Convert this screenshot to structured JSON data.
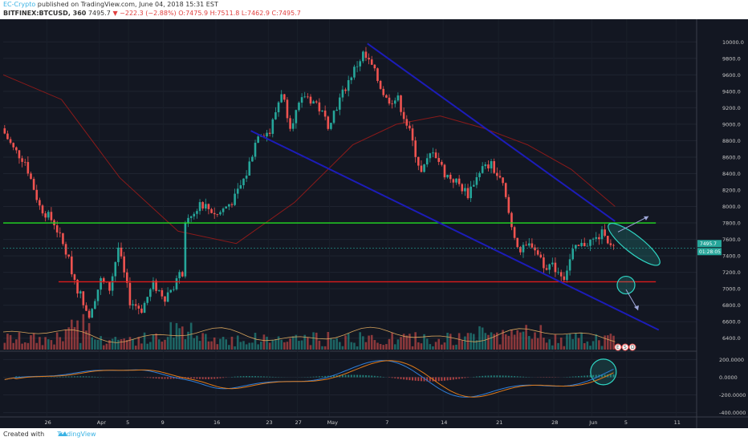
{
  "header": {
    "author": "EC-Crypto",
    "published": "published on TradingView.com, June 04, 2018 15:31 EST",
    "symbol": "BITFINEX:BTCUSD, 360",
    "last": "7495.7",
    "change": "−222.3 (−2.88%)",
    "ohlc": "O:7475.9 H:7511.8 L:7462.9 C:7495.7"
  },
  "footer": {
    "created_with": "Created with",
    "brand": "TradingView"
  },
  "colors": {
    "background": "#131722",
    "up": "#26a69a",
    "down": "#ef5350",
    "ma": "#8b1a1a",
    "channel": "#1c1cb8",
    "resistance": "#22dd22",
    "support": "#dd1b1b",
    "macd": "#2e7dd7",
    "signal": "#e07b1a",
    "annotation": "#2fd6c4"
  },
  "chart_data": [
    {
      "type": "candlestick",
      "price_range": [
        6300,
        10100
      ],
      "y_ticks": [
        "10000.0",
        "9800.0",
        "9600.0",
        "9400.0",
        "9200.0",
        "9000.0",
        "8800.0",
        "8600.0",
        "8400.0",
        "8200.0",
        "8000.0",
        "7800.0",
        "7600.0",
        "7400.0",
        "7200.0",
        "7000.0",
        "6800.0",
        "6600.0",
        "6400.0"
      ],
      "x_ticks": [
        "26",
        "Apr",
        "5",
        "9",
        "16",
        "23",
        "27",
        "May",
        "7",
        "14",
        "21",
        "28",
        "Jun",
        "5",
        "11",
        "18"
      ],
      "last_price_label": "7495.7",
      "countdown_label": "01:28:05",
      "price_path": [
        {
          "t": 0,
          "p": 8950
        },
        {
          "t": 4,
          "p": 8700
        },
        {
          "t": 8,
          "p": 8550
        },
        {
          "t": 13,
          "p": 8000
        },
        {
          "t": 18,
          "p": 7800
        },
        {
          "t": 22,
          "p": 7450
        },
        {
          "t": 26,
          "p": 7000
        },
        {
          "t": 30,
          "p": 6700
        },
        {
          "t": 34,
          "p": 7100
        },
        {
          "t": 37,
          "p": 7000
        },
        {
          "t": 40,
          "p": 7500
        },
        {
          "t": 44,
          "p": 6850
        },
        {
          "t": 48,
          "p": 6750
        },
        {
          "t": 52,
          "p": 7050
        },
        {
          "t": 56,
          "p": 6900
        },
        {
          "t": 60,
          "p": 7100
        },
        {
          "t": 62,
          "p": 7200
        },
        {
          "t": 63,
          "p": 7750
        },
        {
          "t": 68,
          "p": 8050
        },
        {
          "t": 74,
          "p": 7900
        },
        {
          "t": 80,
          "p": 8100
        },
        {
          "t": 84,
          "p": 8400
        },
        {
          "t": 88,
          "p": 8900
        },
        {
          "t": 92,
          "p": 8900
        },
        {
          "t": 96,
          "p": 9400
        },
        {
          "t": 99,
          "p": 9000
        },
        {
          "t": 104,
          "p": 9350
        },
        {
          "t": 108,
          "p": 9250
        },
        {
          "t": 112,
          "p": 9000
        },
        {
          "t": 116,
          "p": 9300
        },
        {
          "t": 120,
          "p": 9600
        },
        {
          "t": 124,
          "p": 9850
        },
        {
          "t": 127,
          "p": 9700
        },
        {
          "t": 132,
          "p": 9300
        },
        {
          "t": 136,
          "p": 9300
        },
        {
          "t": 140,
          "p": 8900
        },
        {
          "t": 144,
          "p": 8400
        },
        {
          "t": 148,
          "p": 8700
        },
        {
          "t": 152,
          "p": 8400
        },
        {
          "t": 156,
          "p": 8300
        },
        {
          "t": 160,
          "p": 8150
        },
        {
          "t": 164,
          "p": 8450
        },
        {
          "t": 168,
          "p": 8500
        },
        {
          "t": 172,
          "p": 8250
        },
        {
          "t": 175,
          "p": 7750
        },
        {
          "t": 178,
          "p": 7450
        },
        {
          "t": 182,
          "p": 7550
        },
        {
          "t": 186,
          "p": 7300
        },
        {
          "t": 190,
          "p": 7250
        },
        {
          "t": 193,
          "p": 7150
        },
        {
          "t": 196,
          "p": 7450
        },
        {
          "t": 200,
          "p": 7550
        },
        {
          "t": 204,
          "p": 7600
        },
        {
          "t": 207,
          "p": 7700
        },
        {
          "t": 209,
          "p": 7500
        }
      ],
      "moving_average": [
        {
          "t": 0,
          "p": 9600
        },
        {
          "t": 20,
          "p": 9300
        },
        {
          "t": 40,
          "p": 8350
        },
        {
          "t": 60,
          "p": 7700
        },
        {
          "t": 80,
          "p": 7550
        },
        {
          "t": 100,
          "p": 8050
        },
        {
          "t": 120,
          "p": 8750
        },
        {
          "t": 135,
          "p": 9000
        },
        {
          "t": 150,
          "p": 9100
        },
        {
          "t": 165,
          "p": 8950
        },
        {
          "t": 180,
          "p": 8750
        },
        {
          "t": 195,
          "p": 8450
        },
        {
          "t": 210,
          "p": 8000
        }
      ],
      "annotations": {
        "resistance_price": 7800,
        "support_price": 7085,
        "channel_upper": [
          {
            "t": 125,
            "p": 9980
          },
          {
            "t": 210,
            "p": 7820
          }
        ],
        "channel_lower": [
          {
            "t": 85,
            "p": 8920
          },
          {
            "t": 225,
            "p": 6500
          }
        ]
      }
    },
    {
      "type": "volume",
      "legend": [
        "E",
        "S",
        "D"
      ]
    },
    {
      "type": "macd",
      "y_ticks": [
        "200.0000",
        "0.0000",
        "-200.0000",
        "-400.0000"
      ],
      "y_range": [
        -440,
        240
      ]
    }
  ]
}
